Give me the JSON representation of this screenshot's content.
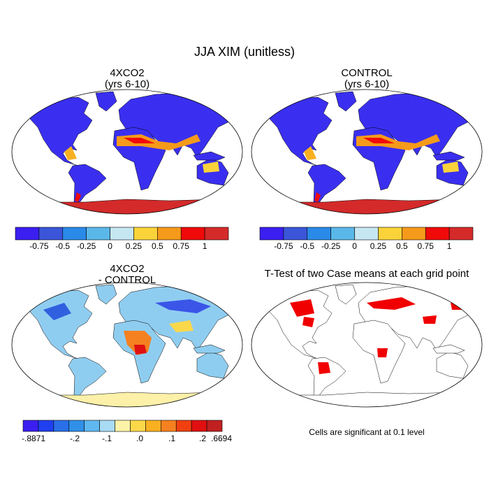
{
  "title": "JJA XIM (unitless)",
  "panels": [
    {
      "title": [
        "4XCO2",
        "(yrs 6-10)"
      ]
    },
    {
      "title": [
        "CONTROL",
        "(yrs 6-10)"
      ]
    },
    {
      "title": [
        "4XCO2",
        "- CONTROL"
      ]
    },
    {
      "title": [
        "T-Test of two Case means at each grid point"
      ]
    }
  ],
  "colorbars": [
    {
      "colors": [
        "#3a1ff0",
        "#3b55d8",
        "#2a8ae8",
        "#5ab8e8",
        "#c6e6f2",
        "#fad33a",
        "#f59a1a",
        "#f00a0a",
        "#d42a2a"
      ],
      "labels": [
        -0.75,
        -0.5,
        -0.25,
        0,
        0.25,
        0.5,
        0.75,
        1
      ]
    },
    {
      "colors": [
        "#3a1ff0",
        "#3b55d8",
        "#2a8ae8",
        "#5ab8e8",
        "#c6e6f2",
        "#fad33a",
        "#f59a1a",
        "#f00a0a",
        "#d42a2a"
      ],
      "labels": [
        -0.75,
        -0.5,
        -0.25,
        0,
        0.25,
        0.5,
        0.75,
        1
      ]
    },
    {
      "colors": [
        "#3a1ff0",
        "#2040f0",
        "#2a6fe8",
        "#3090e8",
        "#60b8f0",
        "#a8dcf5",
        "#fdf3a8",
        "#fbd84a",
        "#f9b020",
        "#f58020",
        "#f04010",
        "#e01010",
        "#c02020"
      ],
      "labels": [
        "-.8871",
        "-.2",
        "-.1",
        ".0",
        ".1",
        ".2",
        ".6694"
      ]
    }
  ],
  "note": "Cells are significant at 0.1 level"
}
